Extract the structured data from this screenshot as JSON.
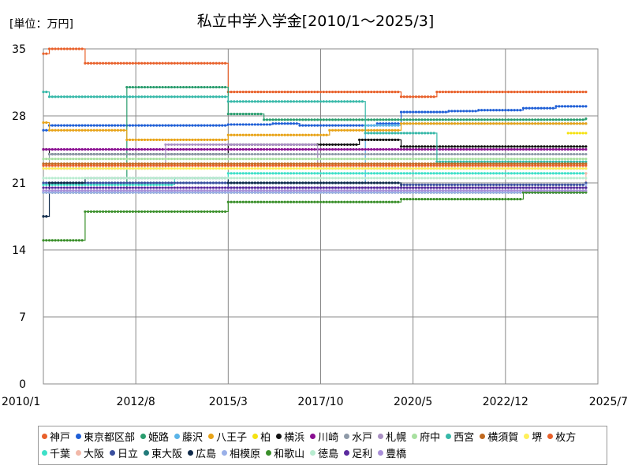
{
  "chart_data": {
    "type": "line",
    "title": "私立中学入学金[2010/1～2025/3]",
    "unit_label": "[単位：万円]",
    "xlabel": "",
    "ylabel": "",
    "x_ticks": [
      "2010/1",
      "2012/8",
      "2015/3",
      "2017/10",
      "2020/5",
      "2022/12",
      "2025/7"
    ],
    "ylim": [
      0,
      35
    ],
    "y_ticks": [
      0,
      7,
      14,
      21,
      28,
      35
    ],
    "grid": true,
    "legend_position": "bottom",
    "x_range": [
      "2010/1",
      "2025/7"
    ],
    "series": [
      {
        "name": "神戸",
        "color": "#e8602a",
        "points": [
          [
            "2010/1",
            34.5
          ],
          [
            "2010/3",
            35
          ],
          [
            "2011/3",
            33.5
          ],
          [
            "2015/3",
            30.5
          ],
          [
            "2020/1",
            30
          ],
          [
            "2021/1",
            30.5
          ],
          [
            "2025/3",
            30.5
          ]
        ]
      },
      {
        "name": "東京都区部",
        "color": "#1f5fd6",
        "points": [
          [
            "2010/1",
            26.5
          ],
          [
            "2010/3",
            27
          ],
          [
            "2015/3",
            27.1
          ],
          [
            "2016/6",
            27.2
          ],
          [
            "2017/3",
            27
          ],
          [
            "2019/5",
            27.2
          ],
          [
            "2020/1",
            28.4
          ],
          [
            "2021/5",
            28.5
          ],
          [
            "2022/3",
            28.6
          ],
          [
            "2023/6",
            28.8
          ],
          [
            "2024/5",
            29
          ],
          [
            "2025/3",
            29
          ]
        ]
      },
      {
        "name": "姫路",
        "color": "#2a9d6e",
        "points": [
          [
            "2010/1",
            20
          ],
          [
            "2012/5",
            31
          ],
          [
            "2015/3",
            28.2
          ],
          [
            "2016/3",
            27.6
          ],
          [
            "2025/3",
            27.7
          ]
        ]
      },
      {
        "name": "藤沢",
        "color": "#5ab4e8",
        "points": [
          [
            "2010/1",
            21
          ],
          [
            "2015/3",
            21
          ],
          [
            "2019/1",
            27
          ],
          [
            "2020/1",
            27.2
          ],
          [
            "2025/3",
            27.2
          ]
        ]
      },
      {
        "name": "八王子",
        "color": "#e8a317",
        "points": [
          [
            "2010/1",
            27.3
          ],
          [
            "2010/3",
            26.5
          ],
          [
            "2012/5",
            25.5
          ],
          [
            "2015/3",
            26
          ],
          [
            "2018/1",
            26.5
          ],
          [
            "2020/1",
            27.2
          ],
          [
            "2025/3",
            27.2
          ]
        ]
      },
      {
        "name": "柏",
        "color": "#f5e211",
        "points": [
          [
            "2024/9",
            26.2
          ],
          [
            "2025/3",
            26.2
          ]
        ]
      },
      {
        "name": "横浜",
        "color": "#111111",
        "points": [
          [
            "2010/1",
            24.5
          ],
          [
            "2010/3",
            24
          ],
          [
            "2015/3",
            25
          ],
          [
            "2018/11",
            25.5
          ],
          [
            "2020/1",
            24.8
          ],
          [
            "2025/3",
            24.8
          ]
        ]
      },
      {
        "name": "川崎",
        "color": "#8a0e91",
        "points": [
          [
            "2010/1",
            24.5
          ],
          [
            "2015/3",
            24.5
          ],
          [
            "2025/3",
            24.5
          ]
        ]
      },
      {
        "name": "水戸",
        "color": "#8e9aa8",
        "points": [
          [
            "2010/1",
            23
          ],
          [
            "2010/3",
            24
          ],
          [
            "2016/3",
            24
          ],
          [
            "2025/3",
            24
          ]
        ]
      },
      {
        "name": "札幌",
        "color": "#a98fc3",
        "points": [
          [
            "2010/1",
            22.5
          ],
          [
            "2013/6",
            25
          ],
          [
            "2015/3",
            25
          ],
          [
            "2017/9",
            22.5
          ],
          [
            "2020/1",
            22.5
          ],
          [
            "2025/3",
            22.5
          ]
        ]
      },
      {
        "name": "府中",
        "color": "#a8e0a0",
        "points": [
          [
            "2010/1",
            23.5
          ],
          [
            "2015/3",
            23.5
          ],
          [
            "2025/3",
            23.5
          ]
        ]
      },
      {
        "name": "西宮",
        "color": "#36b8a8",
        "points": [
          [
            "2010/1",
            30.5
          ],
          [
            "2010/3",
            30
          ],
          [
            "2015/3",
            29.5
          ],
          [
            "2019/1",
            26.2
          ],
          [
            "2021/1",
            23.2
          ],
          [
            "2025/3",
            23.2
          ]
        ]
      },
      {
        "name": "横須賀",
        "color": "#c0691f",
        "points": [
          [
            "2010/1",
            23
          ],
          [
            "2025/3",
            23
          ]
        ]
      },
      {
        "name": "堺",
        "color": "#fff05a",
        "points": [
          [
            "2010/1",
            22.5
          ],
          [
            "2025/3",
            22.5
          ]
        ]
      },
      {
        "name": "枚方",
        "color": "#e8602a",
        "points": [
          [
            "2010/1",
            22.8
          ],
          [
            "2025/3",
            22.8
          ]
        ]
      },
      {
        "name": "千葉",
        "color": "#3de0c8",
        "points": [
          [
            "2010/1",
            20.8
          ],
          [
            "2013/9",
            21.5
          ],
          [
            "2015/3",
            22
          ],
          [
            "2016/3",
            22
          ],
          [
            "2025/3",
            22
          ]
        ]
      },
      {
        "name": "大阪",
        "color": "#f2b8a8",
        "points": [
          [
            "2010/1",
            20
          ],
          [
            "2015/3",
            20
          ],
          [
            "2025/3",
            22
          ]
        ]
      },
      {
        "name": "日立",
        "color": "#3a4f9e",
        "points": [
          [
            "2010/1",
            21
          ],
          [
            "2015/3",
            20.5
          ],
          [
            "2020/1",
            20.8
          ],
          [
            "2025/3",
            21
          ]
        ]
      },
      {
        "name": "東大阪",
        "color": "#227a7a",
        "points": [
          [
            "2010/1",
            20
          ],
          [
            "2020/1",
            20
          ],
          [
            "2025/3",
            20.5
          ]
        ]
      },
      {
        "name": "広島",
        "color": "#0f2a4a",
        "points": [
          [
            "2010/1",
            17.5
          ],
          [
            "2010/3",
            21
          ],
          [
            "2011/3",
            21.5
          ],
          [
            "2015/3",
            21
          ],
          [
            "2020/1",
            20.5
          ],
          [
            "2025/3",
            20.5
          ]
        ]
      },
      {
        "name": "相模原",
        "color": "#9ab0e8",
        "points": [
          [
            "2010/1",
            20
          ],
          [
            "2025/3",
            20.8
          ]
        ]
      },
      {
        "name": "和歌山",
        "color": "#3a8f2a",
        "points": [
          [
            "2010/1",
            15
          ],
          [
            "2011/3",
            18
          ],
          [
            "2015/3",
            19
          ],
          [
            "2020/1",
            19.3
          ],
          [
            "2023/6",
            20
          ],
          [
            "2025/3",
            20
          ]
        ]
      },
      {
        "name": "徳島",
        "color": "#b8ecd0",
        "points": [
          [
            "2010/1",
            21.5
          ],
          [
            "2025/3",
            21.5
          ]
        ]
      },
      {
        "name": "足利",
        "color": "#5a2a9e",
        "points": [
          [
            "2010/1",
            20.5
          ],
          [
            "2025/3",
            20.5
          ]
        ]
      },
      {
        "name": "豊橋",
        "color": "#a98fd8",
        "points": [
          [
            "2010/1",
            20.2
          ],
          [
            "2025/3",
            20.2
          ]
        ]
      }
    ]
  }
}
